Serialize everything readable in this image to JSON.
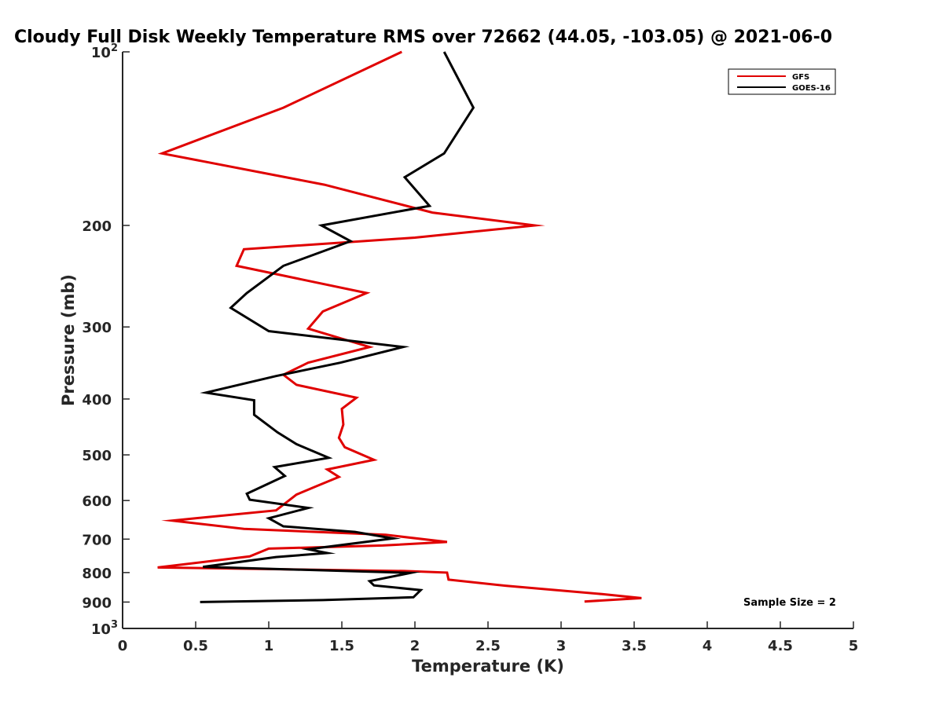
{
  "chart_data": {
    "type": "line",
    "title": "Cloudy Full Disk Weekly Temperature RMS over 72662 (44.05, -103.05) @ 2021-06-0",
    "xlabel": "Temperature (K)",
    "ylabel": "Pressure (mb)",
    "xlim": [
      0,
      5
    ],
    "ylim": [
      100,
      1000
    ],
    "y_scale": "log",
    "y_reversed": true,
    "x_ticks": [
      "0",
      "0.5",
      "1",
      "1.5",
      "2",
      "2.5",
      "3",
      "3.5",
      "4",
      "4.5",
      "5"
    ],
    "y_ticks": [
      {
        "value": 100,
        "label": "10",
        "sup": "2"
      },
      {
        "value": 200,
        "label": "200"
      },
      {
        "value": 300,
        "label": "300"
      },
      {
        "value": 400,
        "label": "400"
      },
      {
        "value": 500,
        "label": "500"
      },
      {
        "value": 600,
        "label": "600"
      },
      {
        "value": 700,
        "label": "700"
      },
      {
        "value": 800,
        "label": "800"
      },
      {
        "value": 900,
        "label": "900"
      },
      {
        "value": 1000,
        "label": "10",
        "sup": "3"
      }
    ],
    "grid": false,
    "legend_position": "top-right",
    "annotation": "Sample Size = 2",
    "series": [
      {
        "name": "GFS",
        "color": "#e00000",
        "points": [
          [
            1.91,
            100
          ],
          [
            1.1,
            125
          ],
          [
            0.27,
            150
          ],
          [
            1.38,
            170
          ],
          [
            2.12,
            190
          ],
          [
            2.82,
            200
          ],
          [
            2.0,
            210
          ],
          [
            0.83,
            220
          ],
          [
            0.78,
            235
          ],
          [
            1.67,
            262
          ],
          [
            1.37,
            282
          ],
          [
            1.27,
            302
          ],
          [
            1.69,
            325
          ],
          [
            1.27,
            346
          ],
          [
            1.1,
            363
          ],
          [
            1.19,
            378
          ],
          [
            1.6,
            398
          ],
          [
            1.5,
            416
          ],
          [
            1.51,
            443
          ],
          [
            1.48,
            467
          ],
          [
            1.52,
            485
          ],
          [
            1.72,
            510
          ],
          [
            1.4,
            530
          ],
          [
            1.48,
            546
          ],
          [
            1.33,
            566
          ],
          [
            1.19,
            586
          ],
          [
            1.05,
            624
          ],
          [
            0.34,
            650
          ],
          [
            0.83,
            672
          ],
          [
            1.8,
            688
          ],
          [
            2.22,
            708
          ],
          [
            1.78,
            718
          ],
          [
            1.0,
            727
          ],
          [
            0.87,
            750
          ],
          [
            0.24,
            784
          ],
          [
            1.93,
            795
          ],
          [
            2.22,
            800
          ],
          [
            2.23,
            823
          ],
          [
            2.62,
            843
          ],
          [
            3.28,
            872
          ],
          [
            3.55,
            886
          ],
          [
            3.16,
            898
          ]
        ]
      },
      {
        "name": "GOES-16",
        "color": "#000000",
        "points": [
          [
            2.2,
            100
          ],
          [
            2.4,
            125
          ],
          [
            2.2,
            150
          ],
          [
            1.93,
            165
          ],
          [
            2.1,
            185
          ],
          [
            1.36,
            200
          ],
          [
            1.56,
            213
          ],
          [
            1.1,
            235
          ],
          [
            0.85,
            262
          ],
          [
            0.74,
            278
          ],
          [
            1.0,
            305
          ],
          [
            1.92,
            325
          ],
          [
            1.49,
            346
          ],
          [
            1.05,
            365
          ],
          [
            0.57,
            390
          ],
          [
            0.9,
            402
          ],
          [
            0.9,
            426
          ],
          [
            1.06,
            457
          ],
          [
            1.19,
            479
          ],
          [
            1.41,
            506
          ],
          [
            1.04,
            525
          ],
          [
            1.11,
            544
          ],
          [
            0.85,
            584
          ],
          [
            0.87,
            598
          ],
          [
            1.27,
            618
          ],
          [
            1.0,
            644
          ],
          [
            1.1,
            665
          ],
          [
            1.59,
            680
          ],
          [
            1.85,
            698
          ],
          [
            1.27,
            729
          ],
          [
            1.4,
            740
          ],
          [
            1.05,
            752
          ],
          [
            0.55,
            782
          ],
          [
            1.97,
            801
          ],
          [
            1.69,
            828
          ],
          [
            1.72,
            842
          ],
          [
            2.04,
            858
          ],
          [
            1.99,
            883
          ],
          [
            1.37,
            893
          ],
          [
            0.53,
            900
          ]
        ]
      }
    ]
  }
}
